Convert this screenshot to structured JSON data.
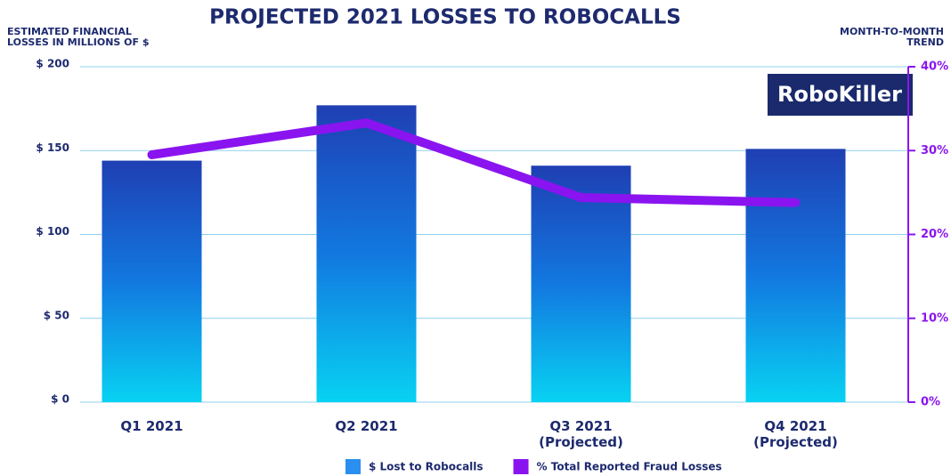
{
  "chart_data": {
    "type": "bar_line",
    "title": "PROJECTED 2021 LOSSES TO ROBOCALLS",
    "y_label": "ESTIMATED FINANCIAL\nLOSSES IN MILLIONS OF $",
    "y2_label": "MONTH-TO-MONTH\nTREND",
    "logo": "RoboKiller",
    "categories": [
      "Q1 2021",
      "Q2 2021",
      "Q3 2021\n(Projected)",
      "Q4 2021\n(Projected)"
    ],
    "series": [
      {
        "name": "$ Lost to Robocalls",
        "type": "bar",
        "color": "#2a8ff0",
        "values": [
          144,
          177,
          141,
          151
        ]
      },
      {
        "name": "% Total Reported Fraud Losses",
        "type": "line",
        "axis": "y2",
        "color": "#8a14f0",
        "values": [
          29.5,
          33.3,
          24.4,
          23.8
        ]
      }
    ],
    "ylim": [
      0,
      200
    ],
    "yticks": [
      {
        "value": 0,
        "label": "$ 0"
      },
      {
        "value": 50,
        "label": "$ 50"
      },
      {
        "value": 100,
        "label": "$ 100"
      },
      {
        "value": 150,
        "label": "$ 150"
      },
      {
        "value": 200,
        "label": "$ 200"
      }
    ],
    "y2lim": [
      0,
      40
    ],
    "y2ticks": [
      {
        "value": 0,
        "label": "0%"
      },
      {
        "value": 10,
        "label": "10%"
      },
      {
        "value": 20,
        "label": "20%"
      },
      {
        "value": 30,
        "label": "30%"
      },
      {
        "value": 40,
        "label": "40%"
      }
    ],
    "grid": true,
    "legend": "bottom"
  }
}
